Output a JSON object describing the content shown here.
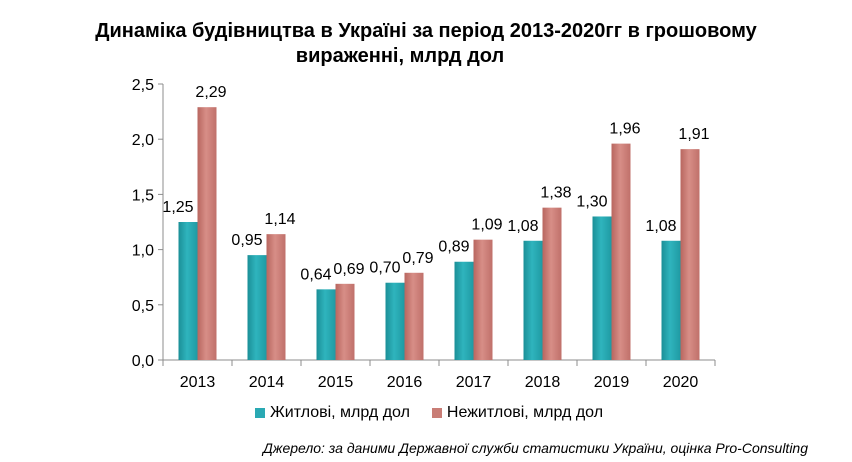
{
  "chart_data": {
    "type": "bar",
    "title_lines": [
      "Динаміка будівництва в Україні за період 2013-2020гг в грошовому",
      "вираженні, млрд дол"
    ],
    "xlabel": "",
    "ylabel": "",
    "categories": [
      "2013",
      "2014",
      "2015",
      "2016",
      "2017",
      "2018",
      "2019",
      "2020"
    ],
    "ylim": [
      0,
      2.5
    ],
    "yticks": [
      "0,0",
      "0,5",
      "1,0",
      "1,5",
      "2,0",
      "2,5"
    ],
    "ytick_values": [
      0,
      0.5,
      1.0,
      1.5,
      2.0,
      2.5
    ],
    "grid": false,
    "legend_position": "bottom",
    "series": [
      {
        "name": "Житлові, млрд дол",
        "color": "#2aa9b3",
        "values": [
          1.25,
          0.95,
          0.64,
          0.7,
          0.89,
          1.08,
          1.3,
          1.08
        ],
        "labels": [
          "1,25",
          "0,95",
          "0,64",
          "0,70",
          "0,89",
          "1,08",
          "1,30",
          "1,08"
        ]
      },
      {
        "name": "Нежитлові,  млрд дол",
        "color": "#c97d76",
        "values": [
          2.29,
          1.14,
          0.69,
          0.79,
          1.09,
          1.38,
          1.96,
          1.91
        ],
        "labels": [
          "2,29",
          "1,14",
          "0,69",
          "0,79",
          "1,09",
          "1,38",
          "1,96",
          "1,91"
        ]
      }
    ],
    "source": "Джерело: за даними Державної служби статистики України, оцінка Pro-Consulting"
  }
}
